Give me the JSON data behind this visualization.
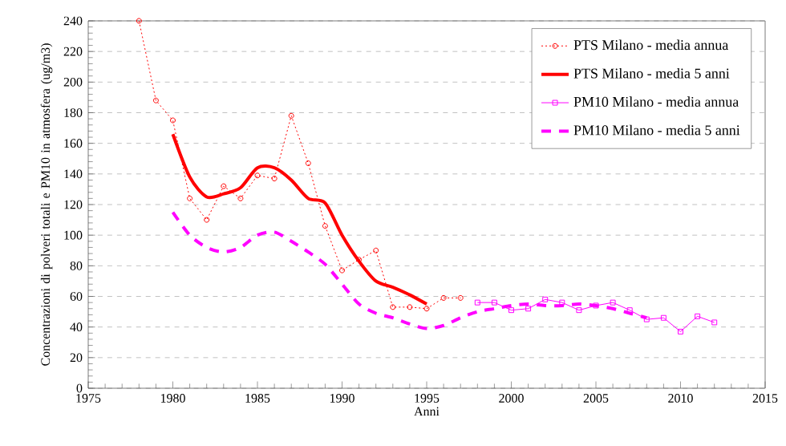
{
  "chart_data": {
    "type": "line",
    "xlabel": "Anni",
    "ylabel": "Concentrazioni di polveri totali e PM10 in atmosfera (ug/m3)",
    "xlim": [
      1975,
      2015
    ],
    "xticks": [
      1975,
      1980,
      1985,
      1990,
      1995,
      2000,
      2005,
      2010,
      2015
    ],
    "ylim": [
      0,
      240
    ],
    "yticks": [
      0,
      20,
      40,
      60,
      80,
      100,
      120,
      140,
      160,
      180,
      200,
      220,
      240
    ],
    "grid": "y",
    "legend": "top right",
    "series": [
      {
        "name": "PTS Milano - media annua",
        "color": "#ff0000",
        "marker": "circle",
        "line_style": "dotted",
        "x": [
          1978,
          1979,
          1980,
          1981,
          1982,
          1983,
          1984,
          1985,
          1986,
          1987,
          1988,
          1989,
          1990,
          1991,
          1992,
          1993,
          1994,
          1995,
          1996,
          1997
        ],
        "values": [
          240,
          188,
          175,
          124,
          110,
          132,
          124,
          139,
          137,
          178,
          147,
          106,
          77,
          84,
          90,
          53,
          53,
          52,
          59,
          59
        ]
      },
      {
        "name": "PTS Milano - media 5 anni",
        "color": "#ff0000",
        "marker": "none",
        "line_style": "solid",
        "x": [
          1980,
          1981,
          1982,
          1983,
          1984,
          1985,
          1986,
          1987,
          1988,
          1989,
          1990,
          1991,
          1992,
          1993,
          1994,
          1995
        ],
        "values": [
          166,
          138,
          125,
          127,
          131,
          144,
          144,
          136,
          124,
          121,
          100,
          83,
          70,
          66,
          61,
          55
        ]
      },
      {
        "name": "PM10 Milano - media annua",
        "color": "#ff00ff",
        "marker": "square",
        "line_style": "solid",
        "x": [
          1998,
          1999,
          2000,
          2001,
          2002,
          2003,
          2004,
          2005,
          2006,
          2007,
          2008,
          2009,
          2010,
          2011,
          2012
        ],
        "values": [
          56,
          56,
          51,
          52,
          58,
          56,
          51,
          54,
          56,
          51,
          45,
          46,
          37,
          47,
          43
        ]
      },
      {
        "name": "PM10 Milano - media 5 anni",
        "color": "#ff00ff",
        "marker": "none",
        "line_style": "dashed",
        "x": [
          1980,
          1981,
          1982,
          1983,
          1984,
          1985,
          1986,
          1987,
          1988,
          1989,
          1990,
          1991,
          1992,
          1993,
          1994,
          1995,
          1996,
          1997,
          1998,
          1999,
          2000,
          2001,
          2002,
          2003,
          2004,
          2005,
          2006,
          2007,
          2008
        ],
        "values": [
          115,
          100,
          92,
          89,
          92,
          100,
          102,
          96,
          89,
          81,
          68,
          55,
          49,
          46,
          42,
          39,
          41,
          46,
          50,
          52,
          54,
          55,
          54,
          54,
          55,
          54,
          52,
          49,
          46
        ]
      }
    ]
  }
}
